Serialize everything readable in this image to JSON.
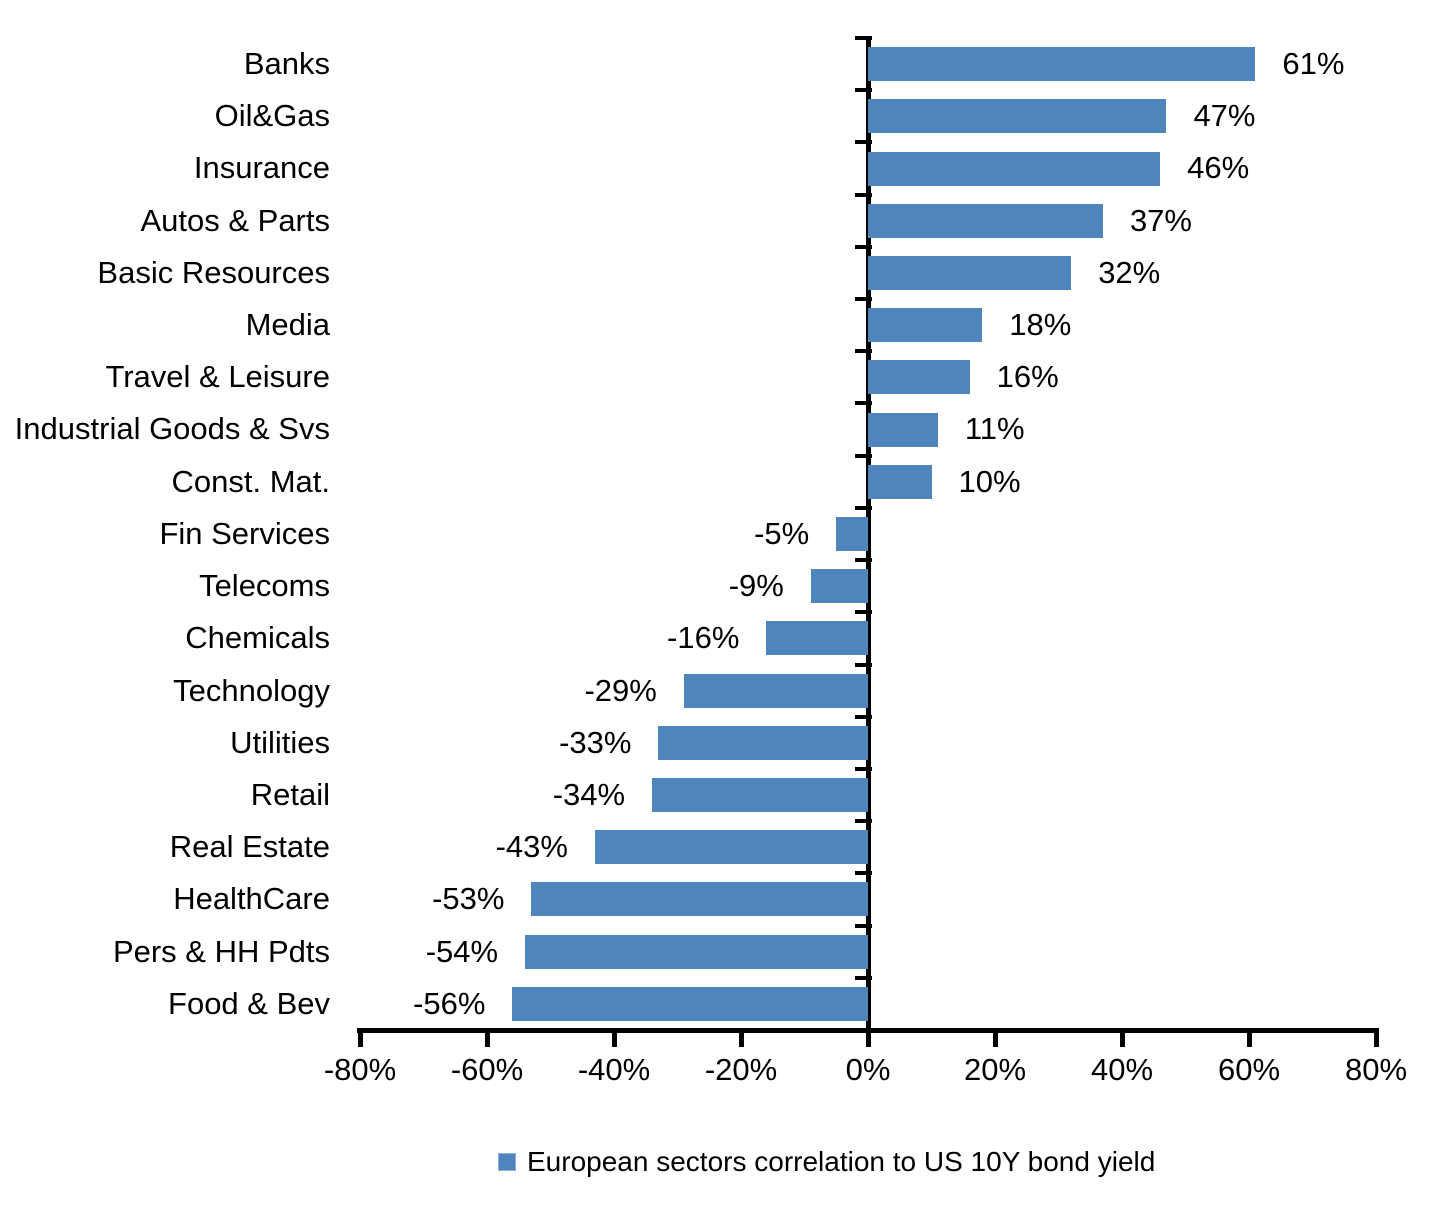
{
  "chart_data": {
    "type": "bar",
    "orientation": "horizontal",
    "title": "",
    "categories": [
      "Banks",
      "Oil&Gas",
      "Insurance",
      "Autos & Parts",
      "Basic Resources",
      "Media",
      "Travel & Leisure",
      "Industrial Goods & Svs",
      "Const. Mat.",
      "Fin Services",
      "Telecoms",
      "Chemicals",
      "Technology",
      "Utilities",
      "Retail",
      "Real Estate",
      "HealthCare",
      "Pers & HH Pdts",
      "Food & Bev"
    ],
    "series": [
      {
        "name": "European sectors correlation to US 10Y bond yield",
        "values": [
          61,
          47,
          46,
          37,
          32,
          18,
          16,
          11,
          10,
          -5,
          -9,
          -16,
          -29,
          -33,
          -34,
          -43,
          -53,
          -54,
          -56
        ],
        "labels": [
          "61%",
          "47%",
          "46%",
          "37%",
          "32%",
          "18%",
          "16%",
          "11%",
          "10%",
          "-5%",
          "-9%",
          "-16%",
          "-29%",
          "-33%",
          "-34%",
          "-43%",
          "-53%",
          "-54%",
          "-56%"
        ]
      }
    ],
    "xlim": [
      -80,
      80
    ],
    "x_tick_labels": [
      "-80%",
      "-60%",
      "-40%",
      "-20%",
      "0%",
      "20%",
      "40%",
      "60%",
      "80%"
    ],
    "grid": false,
    "legend_position": "bottom",
    "legend_label": "European sectors correlation to US 10Y bond yield",
    "bar_color": "#4E85BD",
    "axis_color": "#000000",
    "text_color": "#000000",
    "background_color": "#FFFFFF"
  }
}
